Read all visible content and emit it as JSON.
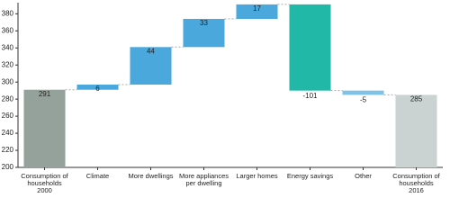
{
  "chart_data": {
    "type": "waterfall",
    "categories": [
      "Consumption of households 2000",
      "Climate",
      "More dwellings",
      "More appliances per dwelling",
      "Larger homes",
      "Energy savings",
      "Other",
      "Consumption of households 2016"
    ],
    "values": [
      291,
      6,
      44,
      33,
      17,
      -101,
      -5,
      285
    ],
    "totals": [
      true,
      false,
      false,
      false,
      false,
      false,
      false,
      true
    ],
    "colors": [
      "#95a29c",
      "#4aa8dc",
      "#4aa8dc",
      "#4aa8dc",
      "#4aa8dc",
      "#22b8a8",
      "#7ec3e6",
      "#cad3d1"
    ],
    "ylim": [
      200,
      393
    ],
    "yticks": [
      200,
      220,
      240,
      260,
      280,
      300,
      320,
      340,
      360,
      380
    ]
  }
}
